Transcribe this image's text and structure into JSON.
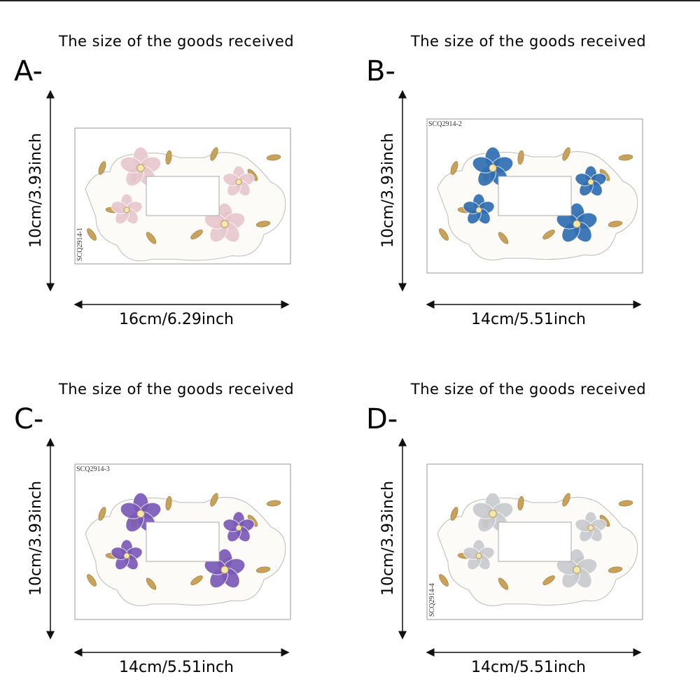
{
  "panels": [
    {
      "heading": "The size of the goods received",
      "letter": "A-",
      "height_label": "10cm/3.93inch",
      "width_label": "16cm/6.29inch",
      "code": "SCQ2914-1",
      "flower_color": "#e8c8cf"
    },
    {
      "heading": "The size of the goods received",
      "letter": "B-",
      "height_label": "10cm/3.93inch",
      "width_label": "14cm/5.51inch",
      "code": "SCQ2914-2",
      "flower_color": "#2f6fb3"
    },
    {
      "heading": "The size of the goods received",
      "letter": "C-",
      "height_label": "10cm/3.93inch",
      "width_label": "14cm/5.51inch",
      "code": "SCQ2914-3",
      "flower_color": "#7a5ab8"
    },
    {
      "heading": "The size of the goods received",
      "letter": "D-",
      "height_label": "10cm/3.93inch",
      "width_label": "14cm/5.51inch",
      "code": "SCQ2914-4",
      "flower_color": "#c9cbcf"
    }
  ]
}
